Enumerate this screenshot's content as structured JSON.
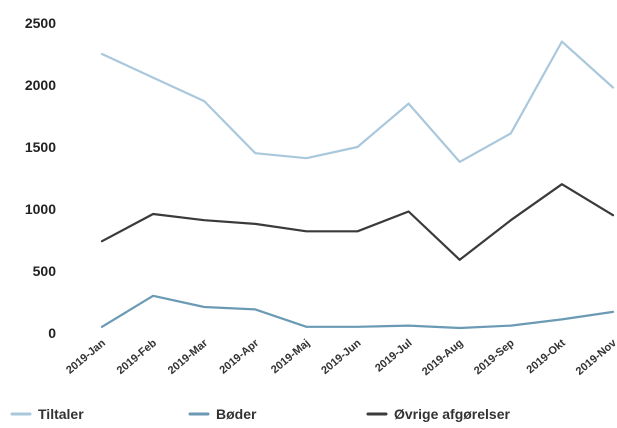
{
  "chart_data": {
    "type": "line",
    "categories": [
      "2019-Jan",
      "2019-Feb",
      "2019-Mar",
      "2019-Apr",
      "2019-Maj",
      "2019-Jun",
      "2019-Jul",
      "2019-Aug",
      "2019-Sep",
      "2019-Okt",
      "2019-Nov"
    ],
    "series": [
      {
        "name": "Tiltaler",
        "color": "#aac8dc",
        "values": [
          2250,
          2060,
          1870,
          1450,
          1410,
          1500,
          1850,
          1380,
          1610,
          2350,
          1980
        ]
      },
      {
        "name": "Bøder",
        "color": "#6a9ab4",
        "values": [
          50,
          300,
          210,
          190,
          50,
          50,
          60,
          40,
          60,
          110,
          170
        ]
      },
      {
        "name": "Øvrige afgørelser",
        "color": "#3a3a3a",
        "values": [
          740,
          960,
          910,
          880,
          820,
          820,
          980,
          590,
          910,
          1200,
          950
        ]
      }
    ],
    "yticks": [
      "0",
      "500",
      "1000",
      "1500",
      "2000",
      "2500"
    ],
    "ylim": [
      0,
      2500
    ],
    "grid": false,
    "legend_position": "bottom"
  }
}
